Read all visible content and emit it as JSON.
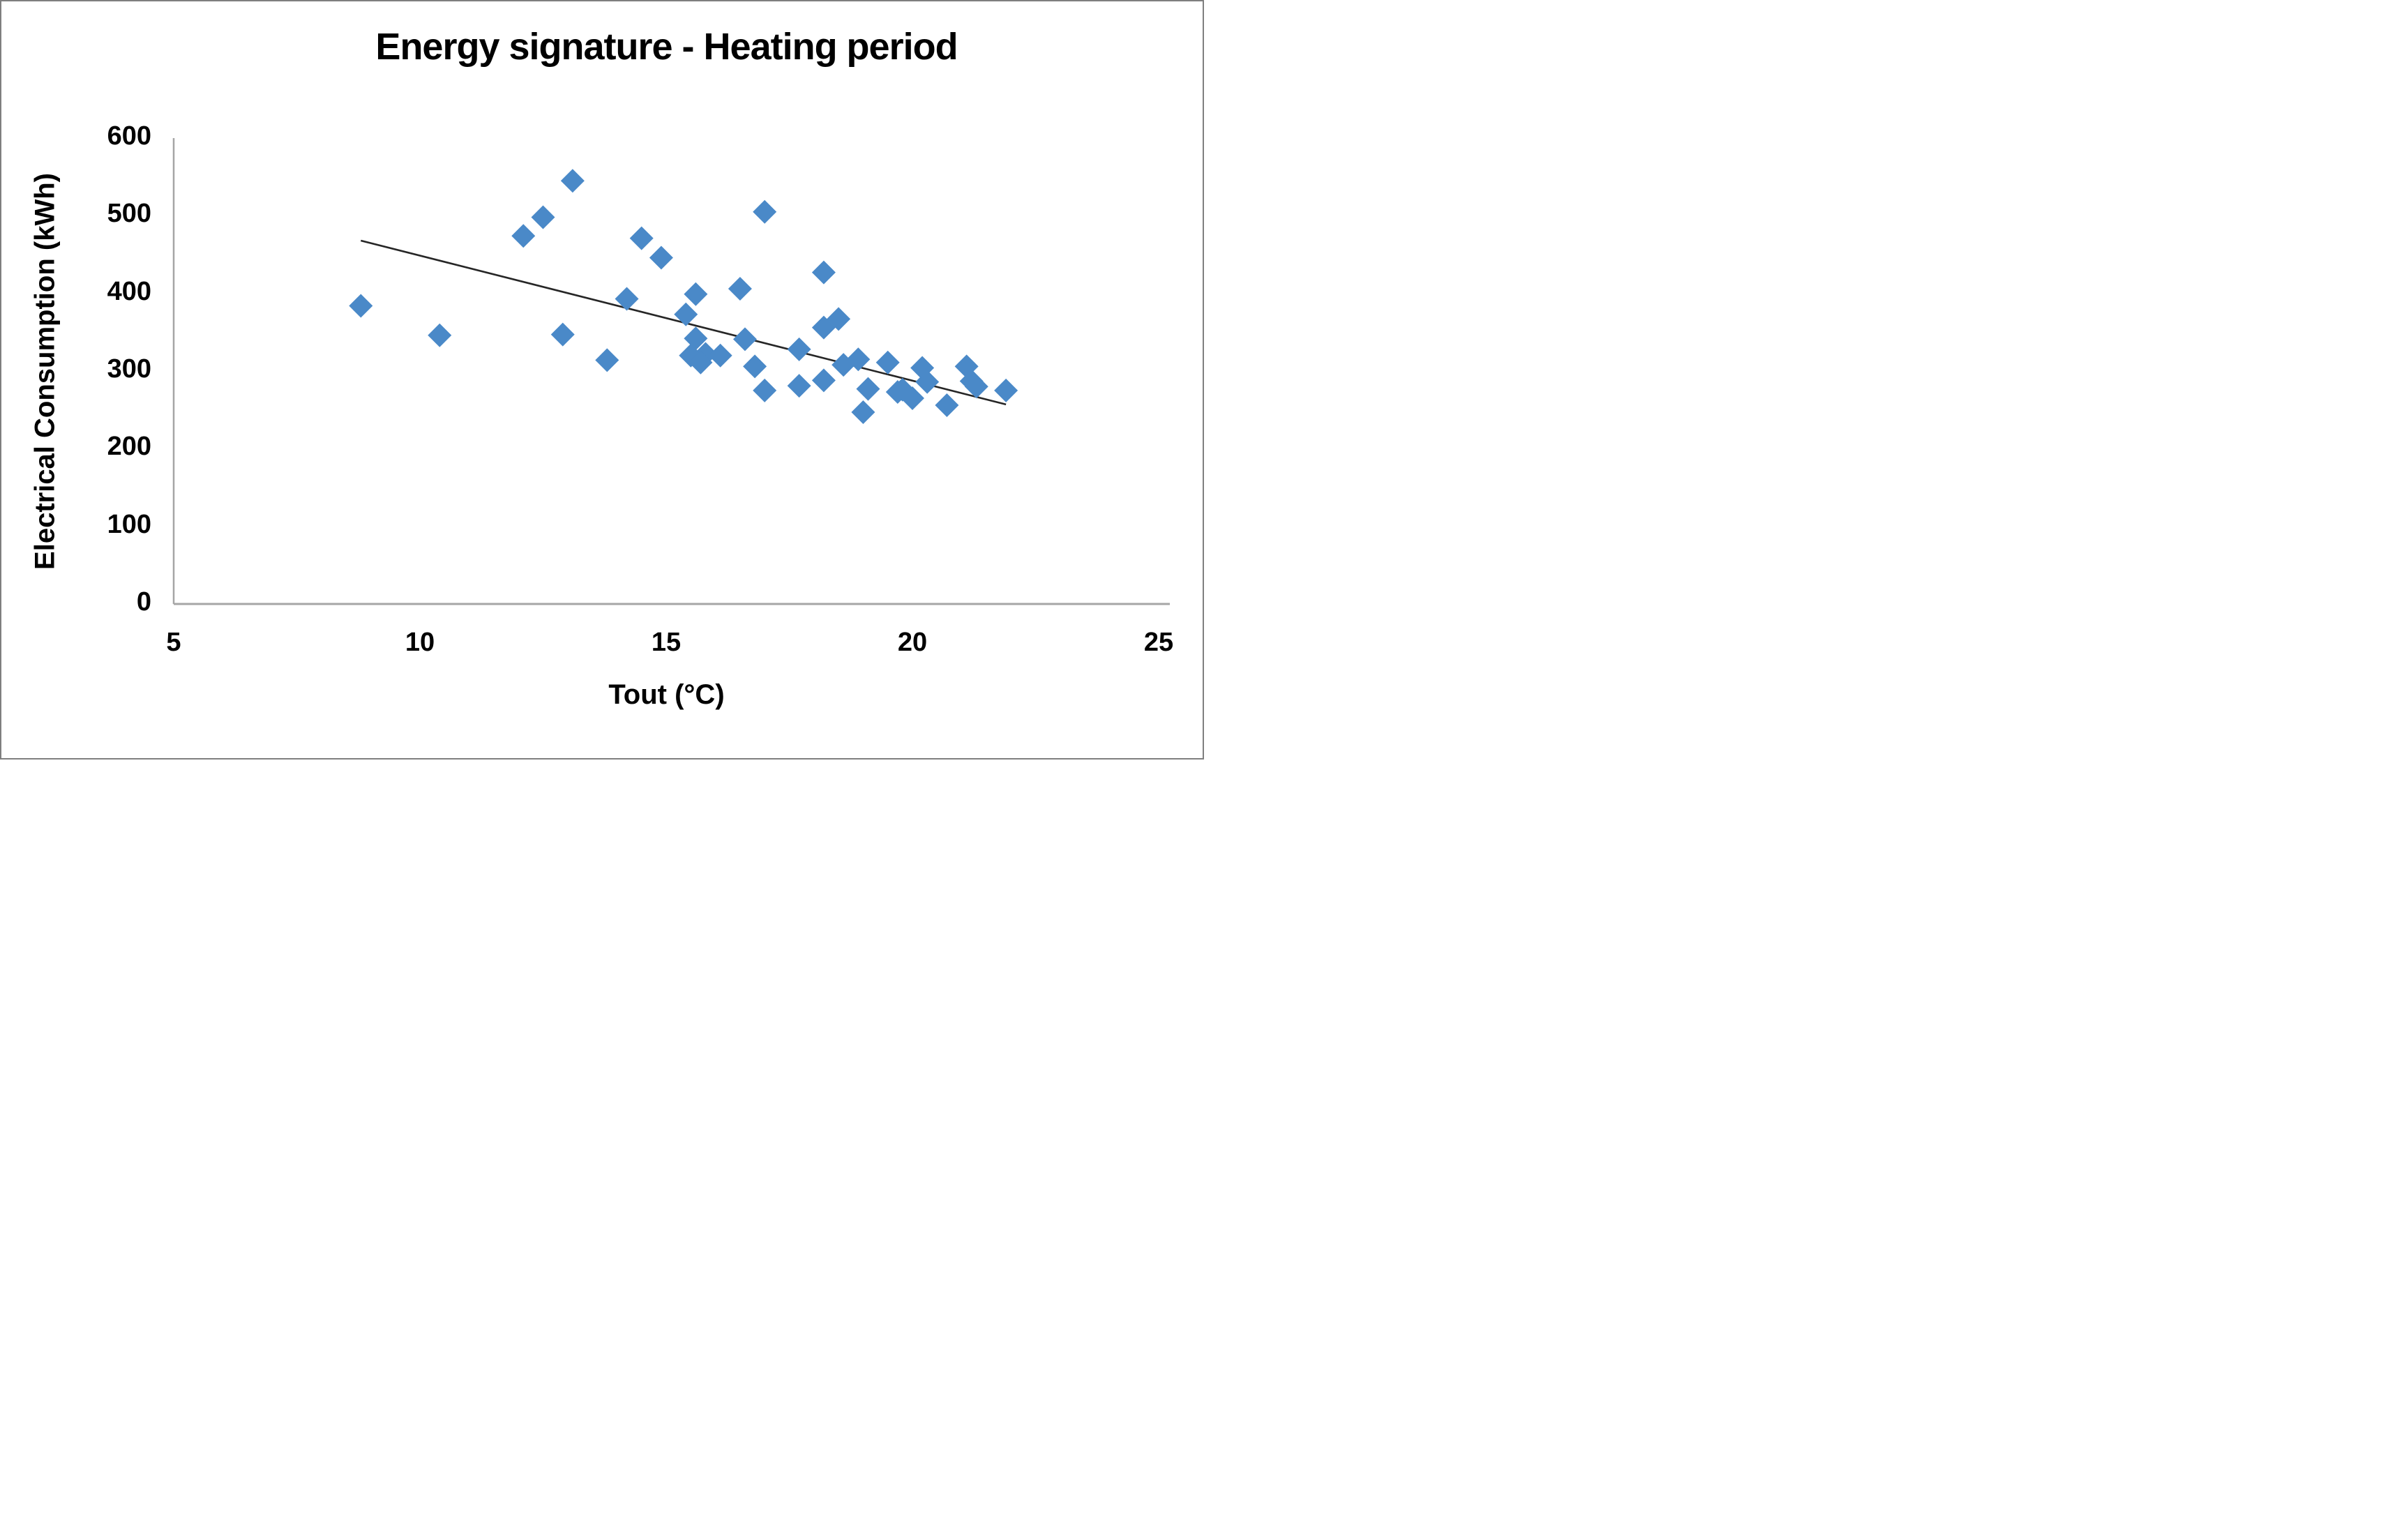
{
  "chart_data": {
    "type": "scatter",
    "title": "Energy signature - Heating period",
    "xlabel": "Tout (°C)",
    "ylabel": "Electrical Consumption (kWh)",
    "xlim": [
      5,
      25
    ],
    "ylim": [
      0,
      600
    ],
    "x_ticks": [
      5,
      10,
      15,
      20,
      25
    ],
    "y_ticks": [
      0,
      100,
      200,
      300,
      400,
      500,
      600
    ],
    "grid": false,
    "legend": "none",
    "marker_shape": "diamond",
    "marker_color": "#4a89c8",
    "trendline_color": "#262626",
    "axis_color": "#a6a6a6",
    "points": [
      {
        "x": 8.8,
        "y": 384
      },
      {
        "x": 10.4,
        "y": 346
      },
      {
        "x": 12.1,
        "y": 474
      },
      {
        "x": 12.5,
        "y": 498
      },
      {
        "x": 13.1,
        "y": 545
      },
      {
        "x": 12.9,
        "y": 347
      },
      {
        "x": 13.8,
        "y": 314
      },
      {
        "x": 14.2,
        "y": 393
      },
      {
        "x": 14.5,
        "y": 471
      },
      {
        "x": 14.9,
        "y": 446
      },
      {
        "x": 15.4,
        "y": 373
      },
      {
        "x": 15.6,
        "y": 399
      },
      {
        "x": 15.6,
        "y": 342
      },
      {
        "x": 15.5,
        "y": 320
      },
      {
        "x": 15.8,
        "y": 322
      },
      {
        "x": 16.1,
        "y": 320
      },
      {
        "x": 15.7,
        "y": 311
      },
      {
        "x": 16.5,
        "y": 406
      },
      {
        "x": 16.6,
        "y": 341
      },
      {
        "x": 16.8,
        "y": 306
      },
      {
        "x": 17.0,
        "y": 505
      },
      {
        "x": 17.0,
        "y": 275
      },
      {
        "x": 17.7,
        "y": 328
      },
      {
        "x": 17.7,
        "y": 281
      },
      {
        "x": 18.2,
        "y": 427
      },
      {
        "x": 18.2,
        "y": 356
      },
      {
        "x": 18.5,
        "y": 367
      },
      {
        "x": 18.2,
        "y": 288
      },
      {
        "x": 18.6,
        "y": 308
      },
      {
        "x": 18.9,
        "y": 315
      },
      {
        "x": 19.0,
        "y": 247
      },
      {
        "x": 19.1,
        "y": 277
      },
      {
        "x": 19.5,
        "y": 311
      },
      {
        "x": 19.7,
        "y": 273
      },
      {
        "x": 19.8,
        "y": 276
      },
      {
        "x": 20.0,
        "y": 265
      },
      {
        "x": 20.2,
        "y": 304
      },
      {
        "x": 20.3,
        "y": 286
      },
      {
        "x": 20.7,
        "y": 256
      },
      {
        "x": 21.1,
        "y": 306
      },
      {
        "x": 21.2,
        "y": 287
      },
      {
        "x": 21.3,
        "y": 280
      },
      {
        "x": 21.9,
        "y": 275
      }
    ],
    "trendline": {
      "x1": 8.8,
      "y1": 468,
      "x2": 21.9,
      "y2": 257
    }
  }
}
